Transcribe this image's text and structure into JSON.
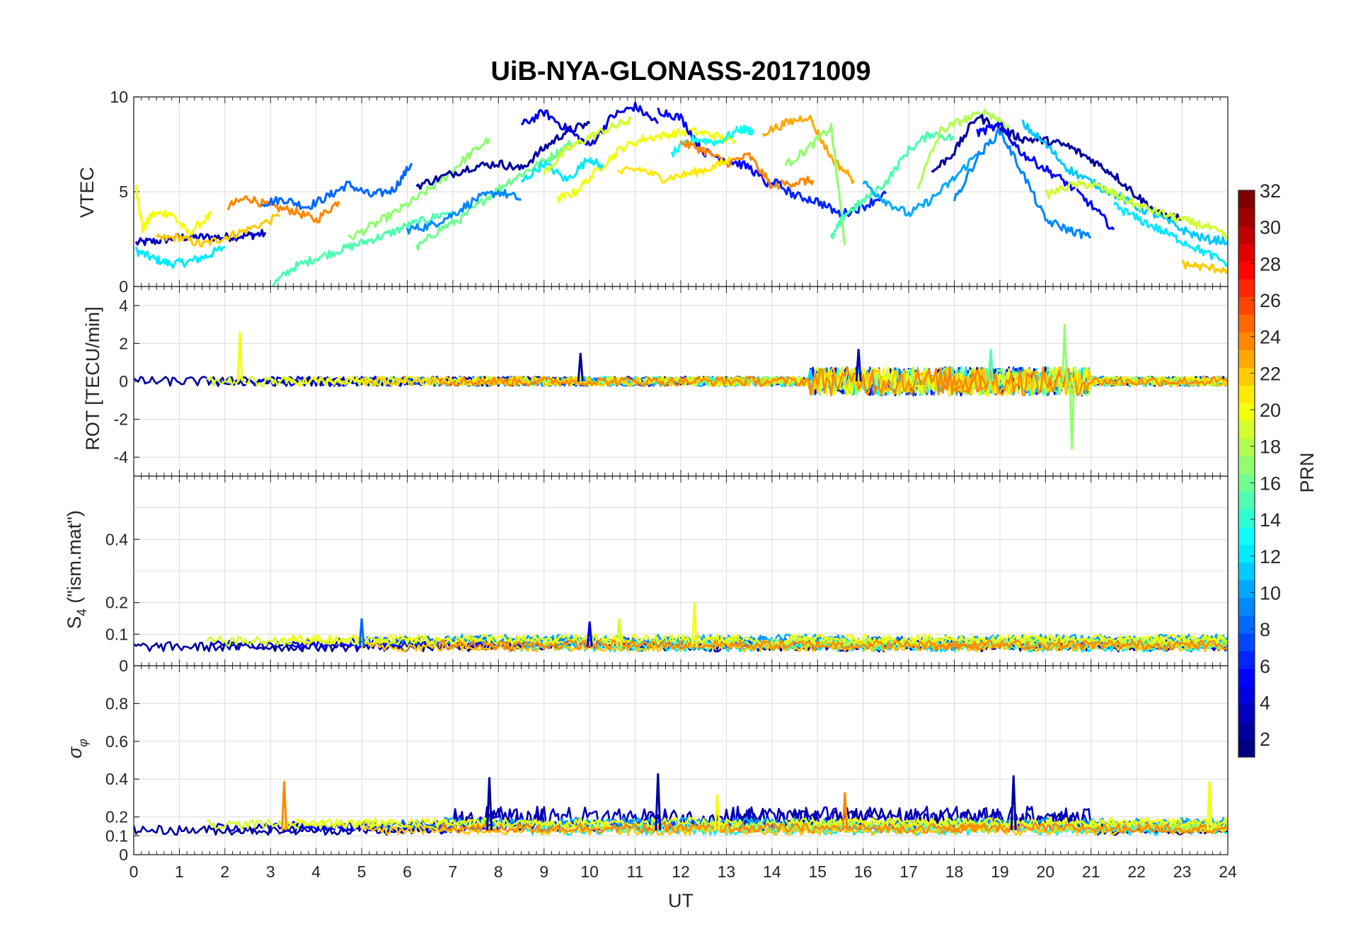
{
  "chart_data": {
    "title": "UiB-NYA-GLONASS-20171009",
    "xlabel": "UT",
    "xlim": [
      0,
      24
    ],
    "xticks": [
      "0",
      "1",
      "2",
      "3",
      "4",
      "5",
      "6",
      "7",
      "8",
      "9",
      "10",
      "11",
      "12",
      "13",
      "14",
      "15",
      "16",
      "17",
      "18",
      "19",
      "20",
      "21",
      "22",
      "23",
      "24"
    ],
    "grid": true,
    "panels": [
      {
        "key": "vtec",
        "type": "line",
        "ylabel": "VTEC",
        "ylim": [
          0,
          10
        ],
        "yticks": [
          "0",
          "5",
          "10"
        ],
        "series": [
          {
            "prn": 3,
            "x": [
              0.05,
              0.5,
              1.0,
              1.5,
              2.0,
              2.5,
              2.9
            ],
            "y": [
              2.3,
              2.4,
              2.6,
              2.6,
              2.6,
              2.7,
              2.8
            ]
          },
          {
            "prn": 12,
            "x": [
              0.05,
              0.4,
              0.8,
              1.2,
              1.6,
              2.0
            ],
            "y": [
              1.9,
              1.5,
              1.2,
              1.3,
              1.6,
              2.1
            ]
          },
          {
            "prn": 20,
            "x": [
              0.05,
              0.2,
              0.4,
              0.8,
              1.2,
              1.7
            ],
            "y": [
              5.3,
              3.0,
              3.8,
              3.9,
              2.8,
              3.8
            ]
          },
          {
            "prn": 22,
            "x": [
              0.5,
              1.0,
              1.5,
              2.0,
              2.5,
              3.2
            ],
            "y": [
              2.5,
              2.6,
              2.2,
              2.6,
              3.0,
              3.7
            ]
          },
          {
            "prn": 24,
            "x": [
              2.05,
              2.5,
              3.0,
              3.5,
              4.0,
              4.5
            ],
            "y": [
              4.2,
              4.7,
              4.2,
              4.0,
              3.5,
              4.5
            ]
          },
          {
            "prn": 8,
            "x": [
              2.8,
              3.3,
              3.8,
              4.3,
              4.7,
              5.2,
              5.7,
              6.1
            ],
            "y": [
              4.4,
              4.6,
              4.2,
              4.8,
              5.4,
              4.8,
              5.1,
              6.5
            ]
          },
          {
            "prn": 15,
            "x": [
              3.05,
              3.5,
              4.0,
              4.5,
              5.0,
              5.5,
              6.0,
              6.5,
              7.0
            ],
            "y": [
              0.1,
              1.0,
              1.5,
              1.9,
              2.3,
              2.7,
              3.2,
              3.6,
              4.0
            ]
          },
          {
            "prn": 17,
            "x": [
              4.7,
              5.3,
              5.8,
              6.3,
              6.8,
              7.3,
              7.8
            ],
            "y": [
              2.5,
              3.3,
              4.0,
              4.8,
              5.7,
              6.8,
              7.8
            ]
          },
          {
            "prn": 16,
            "x": [
              6.2,
              6.7,
              7.2,
              7.7,
              8.2,
              8.7,
              9.2,
              9.6
            ],
            "y": [
              2.0,
              3.0,
              3.6,
              4.6,
              5.5,
              6.2,
              6.9,
              7.6
            ]
          },
          {
            "prn": 2,
            "x": [
              6.2,
              6.8,
              7.4,
              8.0,
              8.5,
              9.0,
              9.5,
              10.0
            ],
            "y": [
              5.3,
              5.8,
              6.3,
              6.5,
              6.2,
              7.3,
              8.2,
              8.6
            ]
          },
          {
            "prn": 9,
            "x": [
              6.0,
              6.5,
              7.0,
              7.5,
              8.0,
              8.5
            ],
            "y": [
              3.0,
              3.2,
              3.8,
              4.6,
              5.0,
              4.6
            ]
          },
          {
            "prn": 4,
            "x": [
              8.5,
              9.0,
              9.5,
              10.0,
              10.5,
              11.0,
              11.5
            ],
            "y": [
              8.5,
              9.2,
              8.3,
              7.4,
              9.0,
              9.5,
              8.6
            ]
          },
          {
            "prn": 12,
            "x": [
              8.5,
              9.0,
              9.5,
              10.0,
              10.3
            ],
            "y": [
              5.5,
              6.5,
              5.6,
              6.8,
              6.2
            ]
          },
          {
            "prn": 19,
            "x": [
              9.0,
              9.5,
              10.0,
              10.5,
              10.9
            ],
            "y": [
              6.0,
              7.2,
              7.9,
              8.4,
              8.8
            ]
          },
          {
            "prn": 20,
            "x": [
              9.3,
              9.7,
              10.2,
              10.7,
              11.2,
              11.7,
              12.2,
              12.7,
              13.2
            ],
            "y": [
              4.6,
              5.0,
              6.2,
              7.3,
              7.8,
              8.0,
              8.2,
              8.0,
              7.6
            ]
          },
          {
            "prn": 5,
            "x": [
              11.5,
              12.0,
              12.5,
              13.0,
              13.5,
              14.0
            ],
            "y": [
              9.3,
              8.9,
              7.1,
              6.7,
              6.3,
              5.2
            ]
          },
          {
            "prn": 13,
            "x": [
              11.8,
              12.3,
              12.8,
              13.3,
              13.6
            ],
            "y": [
              7.0,
              7.8,
              7.6,
              8.3,
              8.2
            ]
          },
          {
            "prn": 24,
            "x": [
              12.0,
              12.5,
              13.0,
              13.5,
              14.0,
              14.5,
              14.9
            ],
            "y": [
              7.6,
              7.2,
              6.5,
              6.9,
              5.3,
              5.5,
              5.6
            ]
          },
          {
            "prn": 21,
            "x": [
              10.6,
              11.1,
              11.6,
              12.1,
              12.6,
              13.1
            ],
            "y": [
              6.0,
              6.2,
              5.7,
              5.9,
              6.2,
              6.7
            ]
          },
          {
            "prn": 23,
            "x": [
              13.8,
              14.3,
              14.8,
              15.3,
              15.8
            ],
            "y": [
              8.1,
              8.6,
              9.0,
              6.8,
              5.6
            ]
          },
          {
            "prn": 17,
            "x": [
              14.3,
              14.8,
              15.3,
              15.6
            ],
            "y": [
              6.4,
              7.3,
              8.4,
              2.2
            ]
          },
          {
            "prn": 6,
            "x": [
              14.0,
              14.5,
              15.0,
              15.5,
              16.0,
              16.5
            ],
            "y": [
              5.6,
              4.8,
              4.5,
              3.8,
              4.2,
              4.9
            ]
          },
          {
            "prn": 15,
            "x": [
              15.3,
              15.6,
              16.0,
              16.5,
              17.0,
              17.5,
              18.0
            ],
            "y": [
              2.5,
              3.8,
              4.5,
              5.5,
              7.2,
              8.1,
              7.8
            ]
          },
          {
            "prn": 10,
            "x": [
              16.0,
              16.5,
              17.0,
              17.5,
              18.0,
              18.5
            ],
            "y": [
              5.5,
              4.5,
              3.8,
              4.6,
              5.7,
              7.0
            ]
          },
          {
            "prn": 18,
            "x": [
              17.2,
              17.7,
              18.2,
              18.7,
              19.2
            ],
            "y": [
              5.3,
              8.2,
              8.8,
              9.2,
              8.5
            ]
          },
          {
            "prn": 2,
            "x": [
              17.5,
              18.0,
              18.5,
              19.0,
              19.5,
              20.0,
              20.5,
              21.0,
              21.5,
              22.0,
              22.5,
              23.0
            ],
            "y": [
              6.0,
              7.1,
              9.0,
              8.3,
              7.8,
              7.7,
              7.4,
              6.7,
              5.9,
              4.8,
              3.8,
              3.6
            ]
          },
          {
            "prn": 5,
            "x": [
              18.5,
              19.0,
              19.5,
              20.0,
              20.5,
              21.0,
              21.5
            ],
            "y": [
              8.1,
              8.5,
              7.0,
              6.2,
              5.4,
              4.3,
              3.0
            ]
          },
          {
            "prn": 9,
            "x": [
              18.0,
              18.5,
              19.0,
              19.5,
              20.0,
              20.5,
              21.0
            ],
            "y": [
              4.5,
              6.8,
              8.2,
              6.0,
              3.5,
              3.0,
              2.6
            ]
          },
          {
            "prn": 11,
            "x": [
              19.5,
              20.0,
              20.5,
              21.0,
              21.5,
              22.0,
              22.5,
              23.0,
              23.5,
              24.0
            ],
            "y": [
              8.6,
              7.5,
              6.2,
              5.5,
              4.9,
              4.2,
              3.7,
              3.0,
              2.5,
              2.4
            ]
          },
          {
            "prn": 19,
            "x": [
              20.0,
              20.5,
              21.0,
              21.5,
              22.0,
              22.5,
              23.0,
              23.5,
              24.0
            ],
            "y": [
              4.8,
              5.3,
              5.4,
              4.9,
              4.3,
              3.9,
              3.5,
              3.2,
              2.6
            ]
          },
          {
            "prn": 12,
            "x": [
              21.5,
              22.0,
              22.5,
              23.0,
              23.5,
              24.0
            ],
            "y": [
              4.3,
              3.6,
              3.0,
              2.4,
              1.8,
              1.2
            ]
          },
          {
            "prn": 22,
            "x": [
              23.0,
              23.5,
              24.0
            ],
            "y": [
              1.2,
              1.0,
              0.9
            ]
          }
        ]
      },
      {
        "key": "rot",
        "type": "line",
        "ylabel": "ROT [TECU/min]",
        "ylim": [
          -5,
          5
        ],
        "yticks": [
          "-4",
          "-2",
          "0",
          "2",
          "4"
        ],
        "spikes": [
          {
            "prn": 20,
            "x": 2.33,
            "y": 2.6
          },
          {
            "prn": 17,
            "x": 20.42,
            "y": 3.0
          },
          {
            "prn": 17,
            "x": 20.58,
            "y": -3.6
          },
          {
            "prn": 3,
            "x": 15.9,
            "y": 1.7
          },
          {
            "prn": 2,
            "x": 9.8,
            "y": 1.5
          },
          {
            "prn": 15,
            "x": 18.8,
            "y": 1.7
          }
        ]
      },
      {
        "key": "s4",
        "type": "line",
        "ylabel": "S4 (\"ism.mat\")",
        "ylim": [
          0,
          0.6
        ],
        "yticks": [
          "0",
          "0.1",
          "0.2",
          "0.4"
        ],
        "spikes": [
          {
            "prn": 20,
            "x": 12.3,
            "y": 0.2
          },
          {
            "prn": 19,
            "x": 10.65,
            "y": 0.15
          },
          {
            "prn": 8,
            "x": 5.0,
            "y": 0.15
          },
          {
            "prn": 4,
            "x": 10.0,
            "y": 0.14
          }
        ]
      },
      {
        "key": "sigma",
        "type": "line",
        "ylabel": "σφ",
        "ylim": [
          0,
          1
        ],
        "yticks": [
          "0",
          "0.1",
          "0.2",
          "0.4",
          "0.6",
          "0.8"
        ],
        "spikes": [
          {
            "prn": 24,
            "x": 3.3,
            "y": 0.39
          },
          {
            "prn": 2,
            "x": 7.8,
            "y": 0.41
          },
          {
            "prn": 2,
            "x": 11.5,
            "y": 0.43
          },
          {
            "prn": 20,
            "x": 12.8,
            "y": 0.32
          },
          {
            "prn": 24,
            "x": 15.6,
            "y": 0.33
          },
          {
            "prn": 2,
            "x": 19.3,
            "y": 0.42
          },
          {
            "prn": 20,
            "x": 23.6,
            "y": 0.39
          }
        ]
      }
    ],
    "colorbar": {
      "label": "PRN",
      "range": [
        1,
        32
      ],
      "colormap": "jet",
      "ticks": [
        "2",
        "4",
        "6",
        "8",
        "10",
        "12",
        "14",
        "16",
        "18",
        "20",
        "22",
        "24",
        "26",
        "28",
        "30",
        "32"
      ]
    }
  }
}
